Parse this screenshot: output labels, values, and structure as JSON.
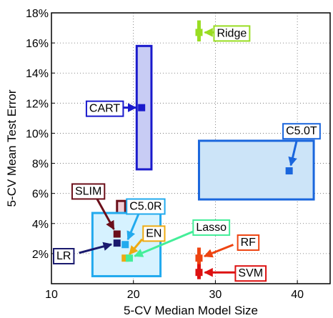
{
  "chart_data": {
    "type": "scatter",
    "title": "",
    "xlabel": "5-CV Median Model Size",
    "ylabel": "5-CV Mean Test Error",
    "xlim": [
      10,
      44
    ],
    "ylim": [
      0,
      18
    ],
    "xticks": [
      10,
      20,
      30,
      40
    ],
    "xtick_labels": [
      "10",
      "20",
      "30",
      "40"
    ],
    "yticks": [
      2,
      4,
      6,
      8,
      10,
      12,
      14,
      16,
      18
    ],
    "ytick_labels": [
      "2%",
      "4%",
      "6%",
      "8%",
      "10%",
      "12%",
      "14%",
      "16%",
      "18%"
    ],
    "grid": true,
    "series": [
      {
        "name": "Ridge",
        "color": "#99dd22",
        "fill": "#eeffcc",
        "x": 28,
        "y": 16.7,
        "box": {
          "x": [
            27.9,
            28.1
          ],
          "y": [
            16.1,
            17.5
          ]
        },
        "label_at": [
          32,
          16.7
        ]
      },
      {
        "name": "CART",
        "color": "#1a1acc",
        "fill": "#c8ccf4",
        "x": 21,
        "y": 11.7,
        "box": {
          "x": [
            20.4,
            22.2
          ],
          "y": [
            7.6,
            15.8
          ]
        },
        "label_at": [
          16.5,
          11.7
        ]
      },
      {
        "name": "C5.0T",
        "color": "#1a66dd",
        "fill": "#cce4f8",
        "x": 39,
        "y": 7.5,
        "box": {
          "x": [
            28,
            42
          ],
          "y": [
            5.6,
            9.5
          ]
        },
        "label_at": [
          40.5,
          10.2
        ]
      },
      {
        "name": "SLIM",
        "color": "#6b0f1a",
        "fill": "#f2d0d8",
        "x": 18,
        "y": 3.3,
        "box": {
          "x": [
            18,
            19
          ],
          "y": [
            0.9,
            5.5
          ]
        },
        "label_at": [
          14.5,
          6.2
        ]
      },
      {
        "name": "C5.0R",
        "color": "#22aaee",
        "fill": "#d6f2ff",
        "x": 19,
        "y": 2.6,
        "box": {
          "x": [
            15,
            23.3
          ],
          "y": [
            0.5,
            4.7
          ]
        },
        "label_at": [
          21.5,
          5.2
        ]
      },
      {
        "name": "EN",
        "color": "#eeaa11",
        "fill": "#fff0cc",
        "x": 19,
        "y": 1.7,
        "label_at": [
          22.5,
          3.4
        ]
      },
      {
        "name": "Lasso",
        "color": "#44ee99",
        "fill": "#ddffee",
        "x": 19.5,
        "y": 1.7,
        "label_at": [
          29.5,
          3.8
        ]
      },
      {
        "name": "LR",
        "color": "#1a1a6e",
        "fill": "#dde0f4",
        "x": 18,
        "y": 2.7,
        "label_at": [
          11.5,
          1.9
        ]
      },
      {
        "name": "RF",
        "color": "#ee4411",
        "fill": "#ffe0cc",
        "x": 28,
        "y": 1.7,
        "box": {
          "x": [
            27.9,
            28.1
          ],
          "y": [
            1.1,
            2.4
          ]
        },
        "label_at": [
          34,
          2.8
        ]
      },
      {
        "name": "SVM",
        "color": "#dd1111",
        "fill": "#ffd8d8",
        "x": 28,
        "y": 0.75,
        "box": {
          "x": [
            27.9,
            28.1
          ],
          "y": [
            0.3,
            1.3
          ]
        },
        "label_at": [
          34.3,
          0.75
        ]
      }
    ]
  }
}
